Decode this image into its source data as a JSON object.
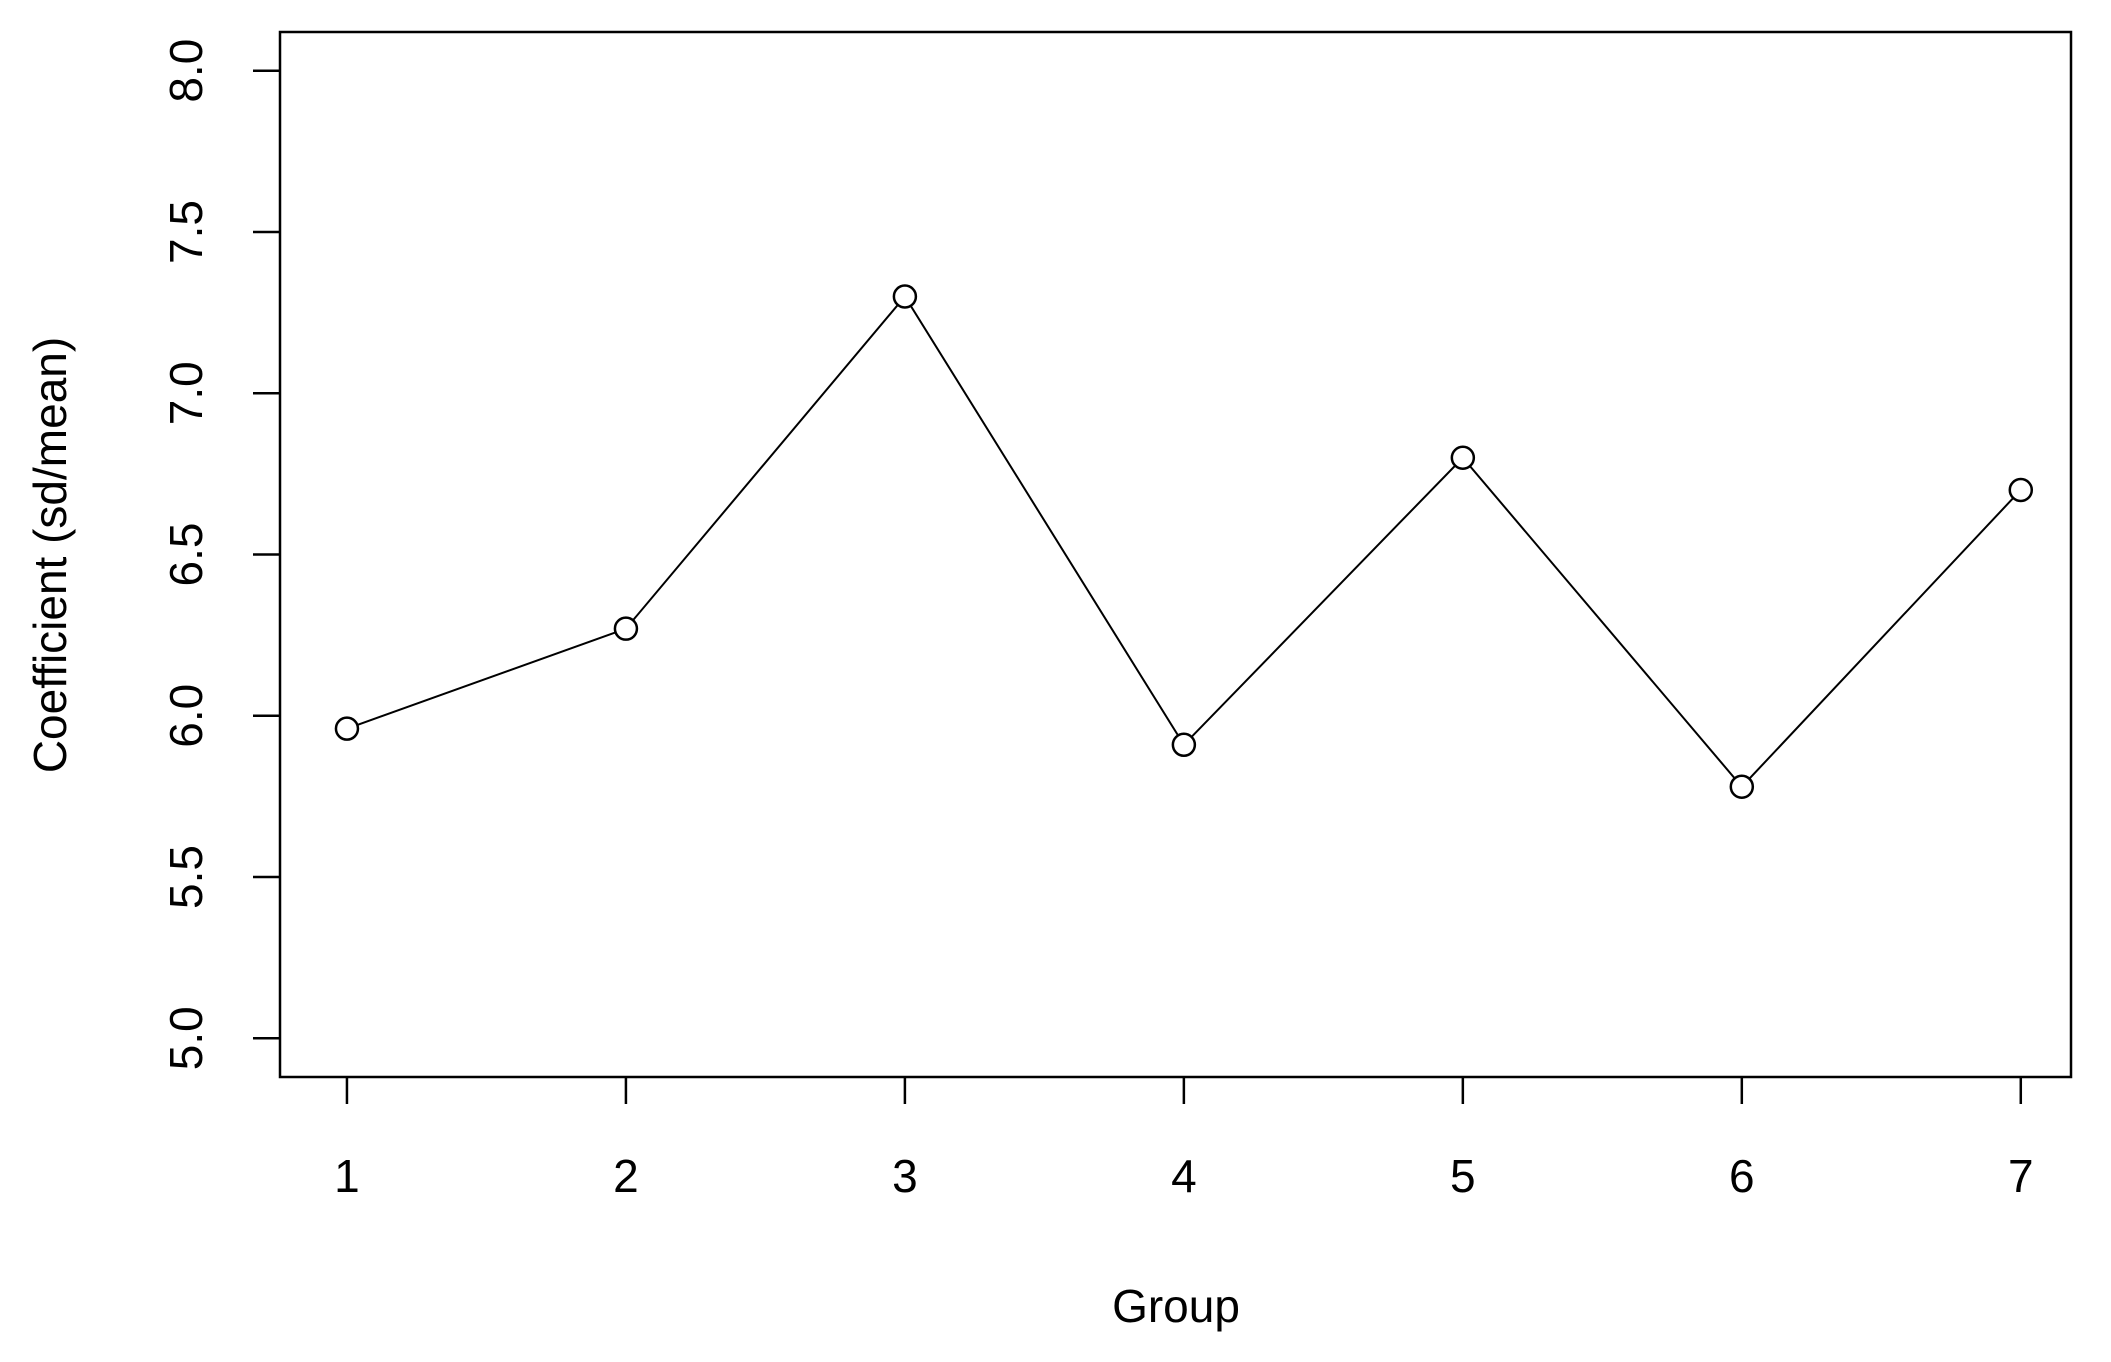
{
  "chart_data": {
    "type": "line",
    "x_label": "Group",
    "y_label": "Coefficient (sd/mean)",
    "x": [
      1,
      2,
      3,
      4,
      5,
      6,
      7
    ],
    "values": [
      5.96,
      6.27,
      7.3,
      5.91,
      6.8,
      5.78,
      6.7
    ],
    "color": "#000000",
    "xlim": [
      0.76,
      7.18
    ],
    "ylim": [
      4.88,
      8.12
    ],
    "xticks": [
      1,
      2,
      3,
      4,
      5,
      6,
      7
    ],
    "yticks": [
      {
        "value": 5,
        "label": "5.0"
      },
      5.5,
      {
        "value": 6,
        "label": "6.0"
      },
      6.5,
      {
        "value": 7,
        "label": "7.0"
      },
      7.5,
      {
        "value": 8,
        "label": "8.0"
      }
    ]
  }
}
